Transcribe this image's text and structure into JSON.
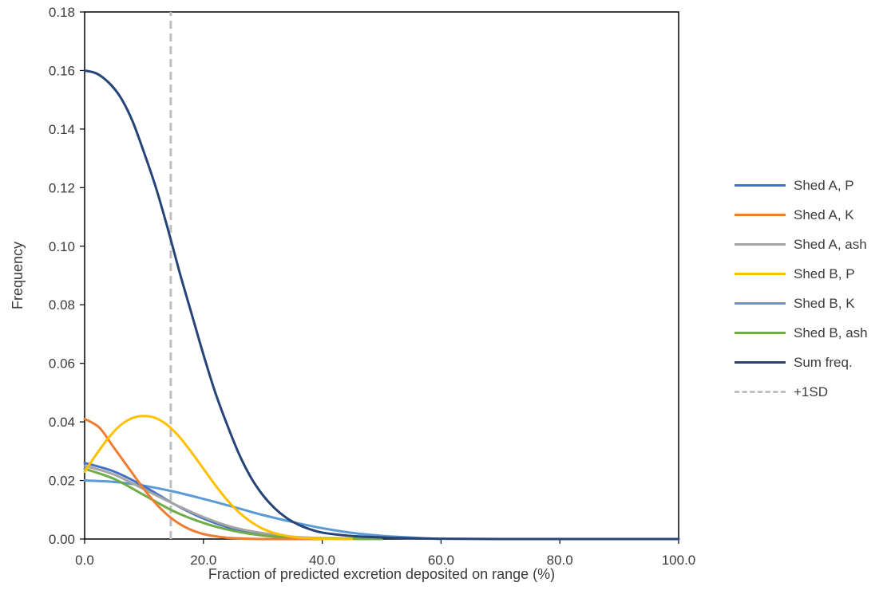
{
  "chart_data": {
    "type": "line",
    "title": "",
    "xlabel": "Fraction of predicted excretion deposited on range (%)",
    "ylabel": "Frequency",
    "xlim": [
      0,
      100
    ],
    "ylim": [
      0,
      0.18
    ],
    "x_ticks": [
      "0.0",
      "20.0",
      "40.0",
      "60.0",
      "80.0",
      "100.0"
    ],
    "y_ticks": [
      "0.00",
      "0.02",
      "0.04",
      "0.06",
      "0.08",
      "0.10",
      "0.12",
      "0.14",
      "0.16",
      "0.18"
    ],
    "grid": false,
    "legend_position": "right",
    "series": [
      {
        "name": "Shed A, P",
        "color": "#4472c4",
        "style": "solid",
        "x": [
          0,
          5,
          10,
          15,
          20,
          25,
          30,
          35,
          40,
          50
        ],
        "y": [
          0.026,
          0.023,
          0.018,
          0.012,
          0.007,
          0.0035,
          0.0015,
          0.0006,
          0.0002,
          0.0
        ]
      },
      {
        "name": "Shed A, K",
        "color": "#ed7d31",
        "style": "solid",
        "x": [
          0,
          2.5,
          5,
          7.5,
          10,
          12.5,
          15,
          17.5,
          20,
          22.5,
          25,
          30,
          40
        ],
        "y": [
          0.041,
          0.038,
          0.031,
          0.024,
          0.017,
          0.011,
          0.0065,
          0.0035,
          0.0017,
          0.0008,
          0.0003,
          0.0,
          0.0
        ]
      },
      {
        "name": "Shed A, ash",
        "color": "#a5a5a5",
        "style": "solid",
        "x": [
          0,
          5,
          10,
          15,
          20,
          25,
          30,
          35,
          40,
          50
        ],
        "y": [
          0.025,
          0.022,
          0.017,
          0.012,
          0.0075,
          0.004,
          0.002,
          0.0008,
          0.0003,
          0.0
        ]
      },
      {
        "name": "Shed B, P",
        "color": "#ffc000",
        "style": "solid",
        "x": [
          0,
          2,
          4,
          6,
          8,
          10,
          12,
          14,
          16,
          18,
          20,
          22,
          24,
          26,
          28,
          30,
          32,
          34,
          36,
          40,
          45
        ],
        "y": [
          0.023,
          0.029,
          0.0345,
          0.0388,
          0.0413,
          0.042,
          0.0413,
          0.0388,
          0.0348,
          0.0296,
          0.024,
          0.0184,
          0.0133,
          0.0091,
          0.0059,
          0.0035,
          0.002,
          0.0011,
          0.0005,
          0.0001,
          0.0
        ]
      },
      {
        "name": "Shed B, K",
        "color": "#5b9bd5",
        "style": "solid",
        "x": [
          0,
          5,
          10,
          15,
          20,
          25,
          30,
          35,
          40,
          45,
          50,
          55,
          60
        ],
        "y": [
          0.02,
          0.0195,
          0.0182,
          0.0162,
          0.0137,
          0.011,
          0.0082,
          0.0058,
          0.0037,
          0.0021,
          0.0011,
          0.0005,
          0.0
        ]
      },
      {
        "name": "Shed B, ash",
        "color": "#70ad47",
        "style": "solid",
        "x": [
          0,
          5,
          10,
          15,
          20,
          25,
          30,
          35,
          40,
          50
        ],
        "y": [
          0.024,
          0.0205,
          0.015,
          0.0095,
          0.0055,
          0.0028,
          0.0012,
          0.0005,
          0.0002,
          0.0
        ]
      },
      {
        "name": "Sum freq.",
        "color": "#264478",
        "style": "solid",
        "x": [
          0,
          2,
          4,
          6,
          8,
          10,
          12,
          14,
          16,
          18,
          20,
          22,
          24,
          26,
          28,
          30,
          32,
          34,
          36,
          38,
          40,
          44,
          48,
          52,
          56,
          60,
          70,
          80,
          90,
          100
        ],
        "y": [
          0.16,
          0.159,
          0.156,
          0.151,
          0.143,
          0.132,
          0.12,
          0.106,
          0.091,
          0.077,
          0.063,
          0.05,
          0.039,
          0.029,
          0.021,
          0.015,
          0.0105,
          0.0072,
          0.0049,
          0.0033,
          0.0022,
          0.0012,
          0.0007,
          0.0004,
          0.0002,
          0.0001,
          0.0,
          0.0,
          0.0,
          0.0
        ]
      },
      {
        "name": "+1SD",
        "color": "#bfbfbf",
        "style": "dashed",
        "x": [
          14.5,
          14.5
        ],
        "y": [
          0,
          0.18
        ]
      }
    ]
  }
}
